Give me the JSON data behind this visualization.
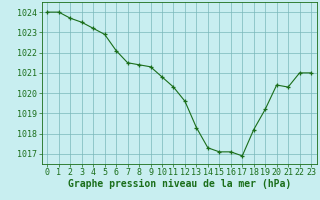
{
  "x": [
    0,
    1,
    2,
    3,
    4,
    5,
    6,
    7,
    8,
    9,
    10,
    11,
    12,
    13,
    14,
    15,
    16,
    17,
    18,
    19,
    20,
    21,
    22,
    23
  ],
  "y": [
    1024.0,
    1024.0,
    1023.7,
    1023.5,
    1023.2,
    1022.9,
    1022.1,
    1021.5,
    1021.4,
    1021.3,
    1020.8,
    1020.3,
    1019.6,
    1018.3,
    1017.3,
    1017.1,
    1017.1,
    1016.9,
    1018.2,
    1019.2,
    1020.4,
    1020.3,
    1021.0,
    1021.0
  ],
  "line_color": "#1a6e1a",
  "marker_color": "#1a6e1a",
  "bg_color": "#c8eef0",
  "grid_color": "#7ab8ba",
  "ylabel_ticks": [
    1017,
    1018,
    1019,
    1020,
    1021,
    1022,
    1023,
    1024
  ],
  "xlabel_ticks": [
    0,
    1,
    2,
    3,
    4,
    5,
    6,
    7,
    8,
    9,
    10,
    11,
    12,
    13,
    14,
    15,
    16,
    17,
    18,
    19,
    20,
    21,
    22,
    23
  ],
  "xlabel": "Graphe pression niveau de la mer (hPa)",
  "ylim": [
    1016.5,
    1024.5
  ],
  "xlim": [
    -0.5,
    23.5
  ],
  "tick_color": "#1a6e1a",
  "axis_color": "#1a6e1a",
  "label_fontsize": 6,
  "xlabel_fontsize": 7,
  "marker_size": 3.5
}
